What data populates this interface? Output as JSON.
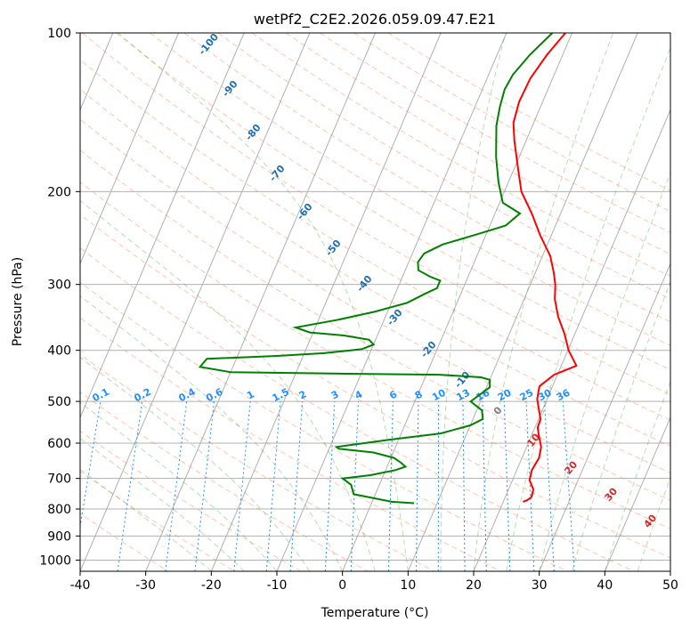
{
  "chart_data": {
    "type": "line",
    "title": "wetPf2_C2E2.2026.059.09.47.E21",
    "xlabel": "Temperature (°C)",
    "ylabel": "Pressure (hPa)",
    "xlim": [
      -40,
      50
    ],
    "ylim": [
      1050,
      100
    ],
    "y_scale": "log",
    "grid": true,
    "x_ticks": [
      -40,
      -30,
      -20,
      -10,
      0,
      10,
      20,
      30,
      40,
      50
    ],
    "y_ticks": [
      100,
      200,
      300,
      400,
      500,
      600,
      700,
      800,
      900,
      1000
    ],
    "series": [
      {
        "name": "",
        "color": "#ff0000",
        "points": [
          [
            -1.0,
            100
          ],
          [
            -2.4,
            110
          ],
          [
            -3.4,
            122
          ],
          [
            -3.6,
            135
          ],
          [
            -3.1,
            148
          ],
          [
            -1.8,
            160
          ],
          [
            0.5,
            180
          ],
          [
            2.6,
            200
          ],
          [
            5.6,
            220
          ],
          [
            8.3,
            242
          ],
          [
            11.2,
            265
          ],
          [
            12.8,
            285
          ],
          [
            13.8,
            300
          ],
          [
            14.7,
            320
          ],
          [
            16.3,
            345
          ],
          [
            18.4,
            372
          ],
          [
            20.1,
            400
          ],
          [
            21.7,
            420
          ],
          [
            22.3,
            428
          ],
          [
            19.5,
            445
          ],
          [
            18.0,
            468
          ],
          [
            18.5,
            495
          ],
          [
            19.3,
            515
          ],
          [
            20.3,
            540
          ],
          [
            20.4,
            560
          ],
          [
            21.1,
            580
          ],
          [
            22.2,
            610
          ],
          [
            22.6,
            640
          ],
          [
            22.3,
            675
          ],
          [
            22.6,
            705
          ],
          [
            23.8,
            735
          ],
          [
            24.0,
            760
          ],
          [
            23.5,
            770
          ],
          [
            23.0,
            775
          ]
        ]
      },
      {
        "name": "",
        "color": "#008000",
        "points": [
          [
            -3.0,
            100
          ],
          [
            -5.0,
            110
          ],
          [
            -6.3,
            120
          ],
          [
            -6.6,
            128
          ],
          [
            -6.2,
            138
          ],
          [
            -5.5,
            150
          ],
          [
            -3.5,
            172
          ],
          [
            -1.5,
            192
          ],
          [
            0.5,
            210
          ],
          [
            3.8,
            220
          ],
          [
            2.4,
            232
          ],
          [
            -1.0,
            240
          ],
          [
            -6.0,
            252
          ],
          [
            -8.2,
            262
          ],
          [
            -8.6,
            272
          ],
          [
            -8.0,
            282
          ],
          [
            -5.8,
            290
          ],
          [
            -4.0,
            295
          ],
          [
            -4.0,
            305
          ],
          [
            -5.4,
            312
          ],
          [
            -7.6,
            325
          ],
          [
            -12.0,
            338
          ],
          [
            -17.0,
            350
          ],
          [
            -23.0,
            362
          ],
          [
            -20.5,
            370
          ],
          [
            -15.0,
            375
          ],
          [
            -11.0,
            382
          ],
          [
            -10.0,
            390
          ],
          [
            -11.5,
            398
          ],
          [
            -17.0,
            405
          ],
          [
            -24.0,
            410
          ],
          [
            -34.5,
            415
          ],
          [
            -35.0,
            430
          ],
          [
            -30.0,
            440
          ],
          [
            -12.0,
            443
          ],
          [
            2.0,
            445
          ],
          [
            8.5,
            450
          ],
          [
            10.0,
            455
          ],
          [
            10.5,
            470
          ],
          [
            8.5,
            500
          ],
          [
            10.8,
            520
          ],
          [
            11.5,
            540
          ],
          [
            10.0,
            555
          ],
          [
            6.0,
            575
          ],
          [
            -1.0,
            590
          ],
          [
            -7.0,
            605
          ],
          [
            -9.0,
            610
          ],
          [
            -8.5,
            615
          ],
          [
            -3.0,
            625
          ],
          [
            0.5,
            640
          ],
          [
            2.0,
            655
          ],
          [
            2.8,
            665
          ],
          [
            1.5,
            675
          ],
          [
            -2.0,
            690
          ],
          [
            -6.0,
            700
          ],
          [
            -4.3,
            720
          ],
          [
            -3.3,
            750
          ],
          [
            3.0,
            775
          ],
          [
            6.5,
            780
          ]
        ]
      }
    ],
    "dry_adiabat_labels": [
      "-100",
      "-90",
      "-80",
      "-70",
      "-60",
      "-50",
      "-40",
      "-30",
      "-20",
      "-10",
      "0",
      "10",
      "20",
      "30",
      "40"
    ],
    "mixing_ratio_labels": [
      "0.1",
      "0.2",
      "0.4",
      "0.6",
      "1",
      "1.5",
      "2",
      "3",
      "4",
      "6",
      "8",
      "10",
      "13",
      "16",
      "20",
      "25",
      "30",
      "36"
    ],
    "colors": {
      "temperature": "#ff0000",
      "dewpoint": "#008000",
      "dry_adiabat": "#ff7f50",
      "moist_adiabat": "#2ca02c",
      "mixing_ratio": "#1e90ff",
      "isotherm": "#808080",
      "label_cold": "#1f6fb4",
      "label_warm": "#d62728",
      "label_zero": "#808080"
    }
  }
}
